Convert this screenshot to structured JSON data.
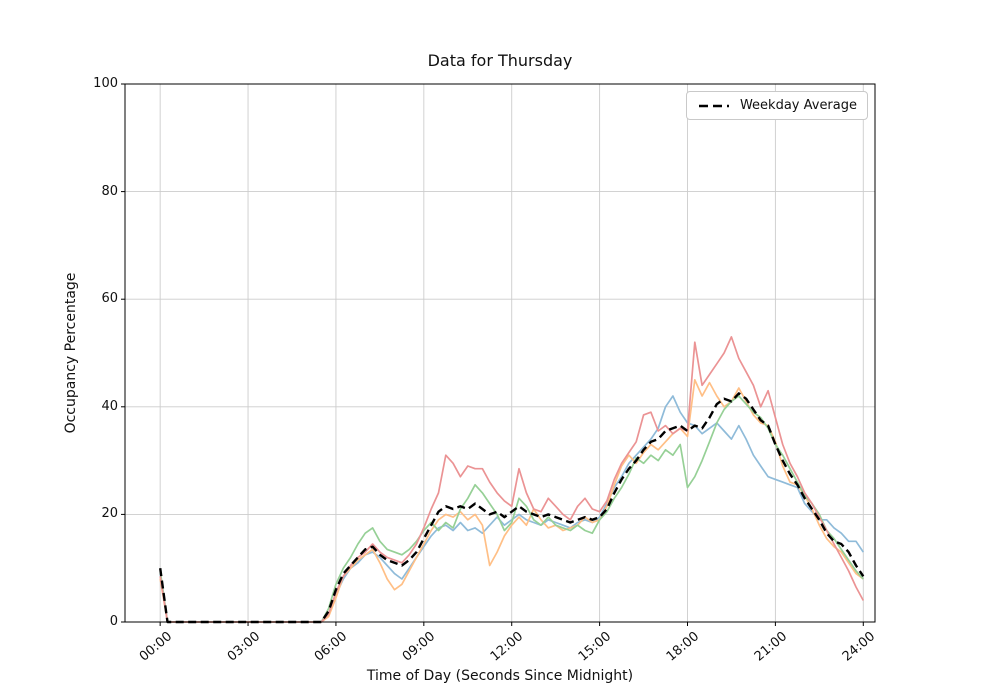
{
  "figure": {
    "title": "Data for Thursday",
    "xlabel": "Time of Day (Seconds Since Midnight)",
    "ylabel": "Occupancy Percentage",
    "legend_label": "Weekday Average"
  },
  "chart_data": {
    "type": "line",
    "title": "Data for Thursday",
    "xlabel": "Time of Day (Seconds Since Midnight)",
    "ylabel": "Occupancy Percentage",
    "grid": true,
    "legend_position": "upper right",
    "ylim": [
      0,
      100
    ],
    "y_ticks": [
      0,
      20,
      40,
      60,
      80,
      100
    ],
    "x_tick_labels": [
      "00:00",
      "03:00",
      "06:00",
      "09:00",
      "12:00",
      "15:00",
      "18:00",
      "21:00",
      "24:00"
    ],
    "x_tick_hours": [
      0,
      3,
      6,
      9,
      12,
      15,
      18,
      21,
      24
    ],
    "x_start_hour": 0,
    "x_step_hours": 0.25,
    "xlim_hours": [
      -1.2,
      24.4
    ],
    "series": [
      {
        "name": "series-1",
        "color": "#8fbbd9",
        "line_width": 1.7,
        "dash": null,
        "in_legend": false,
        "values": [
          9,
          0,
          0,
          0,
          0,
          0,
          0,
          0,
          0,
          0,
          0,
          0,
          0,
          0,
          0,
          0,
          0,
          0,
          0,
          0,
          0,
          0,
          0,
          1.5,
          5,
          8,
          10,
          11,
          12.5,
          13,
          12,
          10.5,
          9,
          8,
          10,
          12,
          14,
          16,
          17.5,
          18,
          17,
          18.5,
          17,
          17.5,
          16.5,
          18,
          19.5,
          18,
          19,
          20,
          19,
          18.5,
          18,
          19,
          18.5,
          18,
          17.5,
          18.5,
          19,
          18.5,
          19.5,
          22,
          25,
          27,
          29.5,
          31,
          32.5,
          34,
          36,
          40,
          42,
          39,
          37,
          36.5,
          35,
          36,
          37,
          35.5,
          34,
          36.5,
          34,
          31,
          29,
          27,
          26.5,
          26,
          25.5,
          25,
          22,
          20.5,
          19,
          19,
          17.5,
          16.5,
          15,
          15,
          13
        ]
      },
      {
        "name": "series-2",
        "color": "#ffbf86",
        "line_width": 1.7,
        "dash": null,
        "in_legend": false,
        "values": [
          8,
          0,
          0,
          0,
          0,
          0,
          0,
          0,
          0,
          0,
          0,
          0,
          0,
          0,
          0,
          0,
          0,
          0,
          0,
          0,
          0,
          0,
          0,
          1,
          4.5,
          8.5,
          10,
          11.5,
          12.5,
          13.5,
          11,
          8,
          6,
          7,
          9.5,
          12,
          14.5,
          17,
          19,
          20,
          19.5,
          20.5,
          19,
          20,
          18,
          10.5,
          13,
          16,
          18,
          19.5,
          18,
          21,
          19,
          17.5,
          18,
          17,
          17.5,
          18,
          19.5,
          18.5,
          19,
          21.5,
          25.5,
          29,
          31,
          29.5,
          31.5,
          33,
          32,
          33.5,
          35,
          36,
          34.5,
          45,
          42,
          44.5,
          42,
          40,
          41,
          43.5,
          41,
          38.5,
          37,
          36.5,
          33.5,
          29,
          26,
          25.5,
          23.5,
          21,
          18,
          15.5,
          14,
          13,
          11,
          9,
          8
        ]
      },
      {
        "name": "series-3",
        "color": "#96d096",
        "line_width": 1.7,
        "dash": null,
        "in_legend": false,
        "values": [
          9.5,
          0,
          0,
          0,
          0,
          0,
          0,
          0,
          0,
          0,
          0,
          0,
          0,
          0,
          0,
          0,
          0,
          0,
          0,
          0,
          0,
          0,
          0,
          2.5,
          7,
          10,
          12,
          14.5,
          16.5,
          17.5,
          15,
          13.5,
          13,
          12.5,
          13.5,
          15,
          17,
          18.5,
          17,
          18.5,
          17.5,
          21,
          23,
          25.5,
          24,
          22,
          20,
          17,
          18.5,
          23,
          21.5,
          19,
          18,
          19.5,
          18,
          17.5,
          17,
          18,
          17,
          16.5,
          19,
          20.5,
          23,
          25,
          27.5,
          30.5,
          29.5,
          31,
          30,
          32,
          31,
          33,
          25,
          27,
          30,
          33.5,
          37,
          39.5,
          41,
          42,
          40.5,
          39,
          38,
          36,
          33,
          31,
          28.5,
          26,
          23.5,
          22,
          20,
          17,
          15.5,
          13.5,
          11.5,
          9.5,
          8
        ]
      },
      {
        "name": "series-4",
        "color": "#eb9394",
        "line_width": 1.7,
        "dash": null,
        "in_legend": false,
        "values": [
          8.5,
          0,
          0,
          0,
          0,
          0,
          0,
          0,
          0,
          0,
          0,
          0,
          0,
          0,
          0,
          0,
          0,
          0,
          0,
          0,
          0,
          0,
          0,
          1.5,
          5.5,
          8.5,
          10.5,
          12,
          13,
          14.5,
          13,
          12,
          11.5,
          11,
          12.5,
          14.5,
          17.5,
          21,
          24,
          31,
          29.5,
          27,
          29,
          28.5,
          28.5,
          26,
          24,
          22.5,
          21.5,
          28.5,
          24,
          21,
          20.5,
          23,
          21.5,
          20,
          19,
          21.5,
          23,
          21,
          20.5,
          22.5,
          26.5,
          29.5,
          31.5,
          33.5,
          38.5,
          39,
          35.5,
          36.5,
          35,
          36,
          35.5,
          52,
          44,
          46,
          48,
          50,
          53,
          49,
          46.5,
          44,
          40,
          43,
          38,
          33,
          29.5,
          27,
          24,
          22,
          19.5,
          17,
          14.5,
          12,
          9.5,
          6.5,
          4
        ]
      },
      {
        "name": "Weekday Average",
        "color": "#000000",
        "line_width": 2.4,
        "dash": "8 4.5",
        "in_legend": true,
        "values": [
          10,
          0,
          0,
          0,
          0,
          0,
          0,
          0,
          0,
          0,
          0,
          0,
          0,
          0,
          0,
          0,
          0,
          0,
          0,
          0,
          0,
          0,
          0,
          2,
          6,
          9,
          10.5,
          12,
          13.5,
          14,
          12.5,
          11.5,
          11,
          10.5,
          11.5,
          13,
          15.5,
          18,
          20.5,
          21.5,
          21,
          21.5,
          21,
          22,
          21,
          20,
          20.5,
          19.5,
          20.5,
          21.5,
          20.5,
          20,
          19.5,
          20,
          19.5,
          19,
          18.5,
          19,
          19.5,
          19,
          19.5,
          21,
          24,
          26.5,
          28.5,
          30,
          32,
          33.5,
          34,
          35.5,
          36,
          36.5,
          35.5,
          36.5,
          36,
          38,
          40.5,
          41.5,
          41,
          42.5,
          41.5,
          39.5,
          37.5,
          36.5,
          33,
          30,
          27.5,
          25.5,
          23,
          21,
          19,
          16.5,
          15,
          14.5,
          13,
          10.5,
          8.5
        ]
      }
    ]
  }
}
